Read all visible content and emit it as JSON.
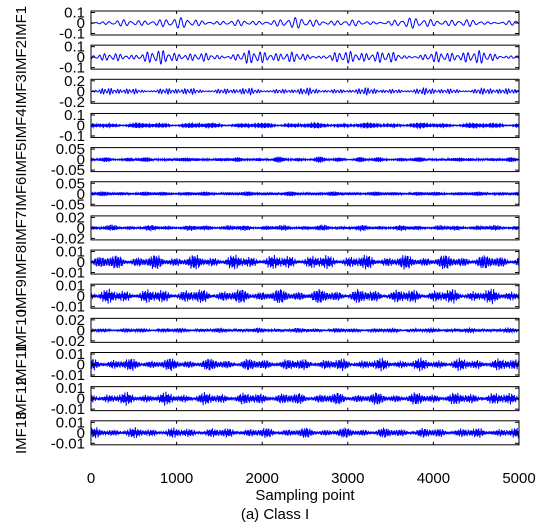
{
  "chart_data": {
    "type": "line",
    "xlabel": "Sampling point",
    "caption": "(a) Class I",
    "xlim": [
      0,
      5000
    ],
    "xticks": [
      0,
      1000,
      2000,
      3000,
      4000,
      5000
    ],
    "line_color": "#0000ff",
    "panels": [
      {
        "name": "IMF1",
        "ylim": [
          -0.1,
          0.1
        ],
        "yticks": [
          "0.1",
          "0",
          "-0.1"
        ],
        "amplitude": 0.045,
        "cycles": 60,
        "mods": 20
      },
      {
        "name": "IMF2",
        "ylim": [
          -0.1,
          0.1
        ],
        "yticks": [
          "0.1",
          "0",
          "-0.1"
        ],
        "amplitude": 0.06,
        "cycles": 80,
        "mods": 25
      },
      {
        "name": "IMF3",
        "ylim": [
          -0.2,
          0.2
        ],
        "yticks": [
          "0.2",
          "0",
          "-0.2"
        ],
        "amplitude": 0.06,
        "cycles": 140,
        "mods": 40
      },
      {
        "name": "IMF4",
        "ylim": [
          -0.1,
          0.1
        ],
        "yticks": [
          "0.1",
          "0",
          "-0.1"
        ],
        "amplitude": 0.03,
        "cycles": 350,
        "mods": 45
      },
      {
        "name": "IMF5",
        "ylim": [
          -0.05,
          0.05
        ],
        "yticks": [
          "0.05",
          "0",
          "-0.05"
        ],
        "amplitude": 0.014,
        "cycles": 600,
        "mods": 55
      },
      {
        "name": "IMF6",
        "ylim": [
          -0.05,
          0.05
        ],
        "yticks": [
          "0.05",
          "0",
          "-0.05"
        ],
        "amplitude": 0.012,
        "cycles": 700,
        "mods": 55
      },
      {
        "name": "IMF7",
        "ylim": [
          -0.02,
          0.02
        ],
        "yticks": [
          "0.02",
          "0",
          "-0.02"
        ],
        "amplitude": 0.006,
        "cycles": 800,
        "mods": 60
      },
      {
        "name": "IMF8",
        "ylim": [
          -0.01,
          0.01
        ],
        "yticks": [
          "0.01",
          "0",
          "-0.01"
        ],
        "amplitude": 0.007,
        "cycles": 900,
        "mods": 60
      },
      {
        "name": "IMF9",
        "ylim": [
          -0.01,
          0.01
        ],
        "yticks": [
          "0.01",
          "0",
          "-0.01"
        ],
        "amplitude": 0.007,
        "cycles": 900,
        "mods": 60
      },
      {
        "name": "IMF10",
        "ylim": [
          -0.02,
          0.02
        ],
        "yticks": [
          "0.02",
          "0",
          "-0.02"
        ],
        "amplitude": 0.005,
        "cycles": 900,
        "mods": 60
      },
      {
        "name": "IMF11",
        "ylim": [
          -0.01,
          0.01
        ],
        "yticks": [
          "0.01",
          "0",
          "-0.01"
        ],
        "amplitude": 0.006,
        "cycles": 900,
        "mods": 60
      },
      {
        "name": "IMF12",
        "ylim": [
          -0.01,
          0.01
        ],
        "yticks": [
          "0.01",
          "0",
          "-0.01"
        ],
        "amplitude": 0.006,
        "cycles": 900,
        "mods": 60
      },
      {
        "name": "IMF13",
        "ylim": [
          -0.01,
          0.01
        ],
        "yticks": [
          "0.01",
          "0",
          "-0.01"
        ],
        "amplitude": 0.005,
        "cycles": 900,
        "mods": 60
      }
    ]
  }
}
